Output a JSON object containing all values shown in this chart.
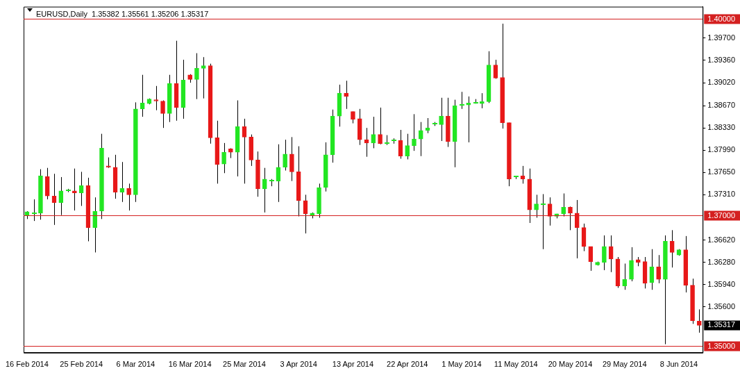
{
  "chart_data": {
    "type": "candlestick",
    "title": "EURUSD,Daily  1.35382 1.35561 1.35206 1.35317",
    "categories": [
      "16 Feb 2014",
      null,
      null,
      null,
      null,
      null,
      null,
      null,
      "25 Feb 2014",
      null,
      null,
      null,
      null,
      null,
      null,
      null,
      "6 Mar 2014",
      null,
      null,
      null,
      null,
      null,
      null,
      null,
      "16 Mar 2014",
      null,
      null,
      null,
      null,
      null,
      null,
      null,
      "25 Mar 2014",
      null,
      null,
      null,
      null,
      null,
      null,
      null,
      "3 Apr 2014",
      null,
      null,
      null,
      null,
      null,
      null,
      null,
      "13 Apr 2014",
      null,
      null,
      null,
      null,
      null,
      null,
      null,
      "22 Apr 2014",
      null,
      null,
      null,
      null,
      null,
      null,
      null,
      "1 May 2014",
      null,
      null,
      null,
      null,
      null,
      null,
      null,
      "11 May 2014",
      null,
      null,
      null,
      null,
      null,
      null,
      null,
      "20 May 2014",
      null,
      null,
      null,
      null,
      null,
      null,
      null,
      "29 May 2014",
      null,
      null,
      null,
      null,
      null,
      null,
      null,
      "8 Jun 2014",
      null,
      null,
      null
    ],
    "ohlc": [
      [
        1.37,
        1.3706,
        1.3694,
        1.3705
      ],
      [
        1.3703,
        1.3724,
        1.3691,
        1.3703
      ],
      [
        1.3703,
        1.377,
        1.3693,
        1.376
      ],
      [
        1.3759,
        1.3772,
        1.3724,
        1.3729
      ],
      [
        1.3729,
        1.3763,
        1.3685,
        1.3719
      ],
      [
        1.3719,
        1.3758,
        1.37,
        1.3737
      ],
      [
        1.3738,
        1.374,
        1.3735,
        1.3738
      ],
      [
        1.3737,
        1.3771,
        1.3707,
        1.3734
      ],
      [
        1.3734,
        1.3766,
        1.3714,
        1.3745
      ],
      [
        1.3745,
        1.3757,
        1.366,
        1.3681
      ],
      [
        1.3681,
        1.3727,
        1.3643,
        1.3706
      ],
      [
        1.3706,
        1.3824,
        1.3694,
        1.3802
      ],
      [
        1.3775,
        1.3788,
        1.3772,
        1.3773
      ],
      [
        1.3773,
        1.3792,
        1.3725,
        1.3735
      ],
      [
        1.3735,
        1.3781,
        1.372,
        1.3741
      ],
      [
        1.3741,
        1.3748,
        1.3707,
        1.3731
      ],
      [
        1.3731,
        1.3872,
        1.372,
        1.3862
      ],
      [
        1.3862,
        1.3914,
        1.385,
        1.3871
      ],
      [
        1.387,
        1.3878,
        1.3869,
        1.3877
      ],
      [
        1.3876,
        1.3897,
        1.386,
        1.3874
      ],
      [
        1.3874,
        1.3875,
        1.3833,
        1.3855
      ],
      [
        1.3855,
        1.3914,
        1.3842,
        1.3901
      ],
      [
        1.3901,
        1.3966,
        1.3844,
        1.3864
      ],
      [
        1.3864,
        1.3937,
        1.3847,
        1.3906
      ],
      [
        1.3914,
        1.3915,
        1.3902,
        1.3907
      ],
      [
        1.3907,
        1.3947,
        1.3877,
        1.3924
      ],
      [
        1.3924,
        1.3941,
        1.3878,
        1.3928
      ],
      [
        1.3928,
        1.3931,
        1.3809,
        1.3818
      ],
      [
        1.3818,
        1.3844,
        1.3748,
        1.3777
      ],
      [
        1.3778,
        1.381,
        1.3764,
        1.3796
      ],
      [
        1.3801,
        1.3802,
        1.3787,
        1.3796
      ],
      [
        1.3796,
        1.3875,
        1.3759,
        1.3835
      ],
      [
        1.3835,
        1.3847,
        1.3748,
        1.3819
      ],
      [
        1.3819,
        1.3823,
        1.3775,
        1.3784
      ],
      [
        1.3784,
        1.3797,
        1.3728,
        1.374
      ],
      [
        1.374,
        1.3772,
        1.3704,
        1.3755
      ],
      [
        1.3753,
        1.3755,
        1.3744,
        1.3753
      ],
      [
        1.3752,
        1.3808,
        1.372,
        1.3773
      ],
      [
        1.3773,
        1.3815,
        1.3768,
        1.3793
      ],
      [
        1.3793,
        1.3819,
        1.3752,
        1.3766
      ],
      [
        1.3766,
        1.3805,
        1.3698,
        1.3722
      ],
      [
        1.3722,
        1.3731,
        1.3672,
        1.3702
      ],
      [
        1.37,
        1.3704,
        1.3695,
        1.3703
      ],
      [
        1.3702,
        1.3748,
        1.3696,
        1.3742
      ],
      [
        1.3742,
        1.3811,
        1.3736,
        1.3792
      ],
      [
        1.3792,
        1.3861,
        1.378,
        1.3851
      ],
      [
        1.3851,
        1.3899,
        1.3835,
        1.3886
      ],
      [
        1.3886,
        1.3905,
        1.3862,
        1.3881
      ],
      [
        1.3858,
        1.3858,
        1.384,
        1.3846
      ],
      [
        1.3847,
        1.3862,
        1.3807,
        1.3815
      ],
      [
        1.3815,
        1.3833,
        1.3789,
        1.381
      ],
      [
        1.381,
        1.385,
        1.3802,
        1.3823
      ],
      [
        1.3823,
        1.3864,
        1.3808,
        1.3809
      ],
      [
        1.381,
        1.3822,
        1.3807,
        1.381
      ],
      [
        1.3814,
        1.3817,
        1.3809,
        1.3814
      ],
      [
        1.3814,
        1.383,
        1.3786,
        1.379
      ],
      [
        1.379,
        1.3824,
        1.3785,
        1.3806
      ],
      [
        1.3806,
        1.3854,
        1.3798,
        1.3816
      ],
      [
        1.3816,
        1.3842,
        1.379,
        1.3829
      ],
      [
        1.3829,
        1.3848,
        1.3825,
        1.3833
      ],
      [
        1.3839,
        1.3842,
        1.3836,
        1.3839
      ],
      [
        1.3838,
        1.3879,
        1.3813,
        1.3851
      ],
      [
        1.3851,
        1.3879,
        1.3804,
        1.3812
      ],
      [
        1.3812,
        1.3876,
        1.3773,
        1.3867
      ],
      [
        1.3868,
        1.3888,
        1.3862,
        1.3868
      ],
      [
        1.3868,
        1.3881,
        1.3811,
        1.3871
      ],
      [
        1.3871,
        1.3877,
        1.387,
        1.3871
      ],
      [
        1.387,
        1.3886,
        1.3863,
        1.3873
      ],
      [
        1.3873,
        1.395,
        1.3871,
        1.3929
      ],
      [
        1.3929,
        1.3937,
        1.3908,
        1.3909
      ],
      [
        1.391,
        1.3992,
        1.3832,
        1.3841
      ],
      [
        1.3841,
        1.3841,
        1.3744,
        1.3755
      ],
      [
        1.3759,
        1.376,
        1.3755,
        1.3759
      ],
      [
        1.376,
        1.3775,
        1.3748,
        1.3755
      ],
      [
        1.3755,
        1.3771,
        1.3688,
        1.3708
      ],
      [
        1.3708,
        1.3731,
        1.3696,
        1.3717
      ],
      [
        1.3717,
        1.3732,
        1.3648,
        1.3717
      ],
      [
        1.3717,
        1.3727,
        1.3684,
        1.3698
      ],
      [
        1.3698,
        1.3702,
        1.3695,
        1.3702
      ],
      [
        1.3702,
        1.3733,
        1.3698,
        1.3712
      ],
      [
        1.3712,
        1.3713,
        1.3677,
        1.3703
      ],
      [
        1.3703,
        1.3723,
        1.3634,
        1.3681
      ],
      [
        1.3681,
        1.3687,
        1.3645,
        1.3652
      ],
      [
        1.3652,
        1.3652,
        1.3615,
        1.3629
      ],
      [
        1.3624,
        1.3629,
        1.3623,
        1.3628
      ],
      [
        1.3628,
        1.3669,
        1.3616,
        1.3652
      ],
      [
        1.3652,
        1.3669,
        1.3613,
        1.3633
      ],
      [
        1.3633,
        1.3636,
        1.3589,
        1.3592
      ],
      [
        1.3592,
        1.3626,
        1.3586,
        1.3602
      ],
      [
        1.3602,
        1.3651,
        1.3599,
        1.3631
      ],
      [
        1.3632,
        1.3636,
        1.3622,
        1.3628
      ],
      [
        1.3629,
        1.3636,
        1.3588,
        1.3596
      ],
      [
        1.3597,
        1.3648,
        1.3586,
        1.3621
      ],
      [
        1.3621,
        1.3639,
        1.3596,
        1.3602
      ],
      [
        1.3602,
        1.3669,
        1.3503,
        1.366
      ],
      [
        1.366,
        1.3677,
        1.362,
        1.3643
      ],
      [
        1.3639,
        1.3648,
        1.3638,
        1.3647
      ],
      [
        1.3647,
        1.3668,
        1.3582,
        1.3593
      ],
      [
        1.3593,
        1.3603,
        1.3534,
        1.3539
      ],
      [
        1.35382,
        1.35561,
        1.35206,
        1.35317
      ]
    ],
    "ylim": [
      1.349,
      1.4018
    ],
    "yticks": [
      {
        "value": 1.397,
        "label": "1.39700"
      },
      {
        "value": 1.3936,
        "label": "1.39360"
      },
      {
        "value": 1.3902,
        "label": "1.39020"
      },
      {
        "value": 1.3867,
        "label": "1.38670"
      },
      {
        "value": 1.3833,
        "label": "1.38330"
      },
      {
        "value": 1.3799,
        "label": "1.37990"
      },
      {
        "value": 1.3765,
        "label": "1.37650"
      },
      {
        "value": 1.3731,
        "label": "1.37310"
      },
      {
        "value": 1.3662,
        "label": "1.36620"
      },
      {
        "value": 1.3628,
        "label": "1.36280"
      },
      {
        "value": 1.3594,
        "label": "1.35940"
      },
      {
        "value": 1.356,
        "label": "1.35600"
      }
    ],
    "ref_lines": [
      {
        "axis": "y",
        "value": 1.4,
        "label": "1.40000",
        "color": "#d42020"
      },
      {
        "axis": "y",
        "value": 1.37,
        "label": "1.37000",
        "color": "#d42020"
      },
      {
        "axis": "y",
        "value": 1.35,
        "label": "1.35000",
        "color": "#d42020"
      }
    ],
    "annotations": [
      "1.35317"
    ]
  }
}
